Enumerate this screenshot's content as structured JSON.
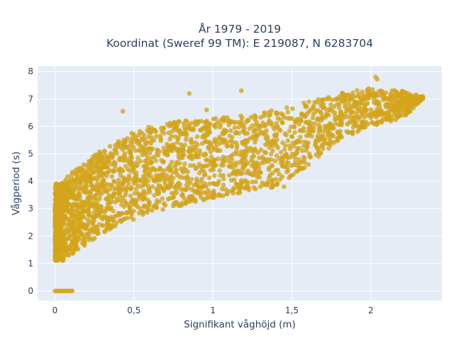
{
  "chart_data": {
    "type": "scatter",
    "title_lines": [
      "År 1979 - 2019",
      "Koordinat (Sweref 99 TM): E 219087, N 6283704"
    ],
    "xlabel": "Signifikant våghöjd (m)",
    "ylabel": "Vågperiod (s)",
    "xlim": [
      -0.11,
      2.45
    ],
    "ylim": [
      -0.35,
      8.2
    ],
    "x_ticks": [
      0,
      0.5,
      1,
      1.5,
      2
    ],
    "x_tick_labels": [
      "0",
      "0,5",
      "1",
      "1,5",
      "2"
    ],
    "y_ticks": [
      0,
      1,
      2,
      3,
      4,
      5,
      6,
      7,
      8
    ],
    "y_tick_labels": [
      "0",
      "1",
      "2",
      "3",
      "4",
      "5",
      "6",
      "7",
      "8"
    ],
    "grid": true,
    "marker_color": "#d4a419",
    "plot_bg": "#e5ecf6",
    "zero_period_points": {
      "x": [
        0.0,
        0.01,
        0.02,
        0.03,
        0.04,
        0.05,
        0.06,
        0.07,
        0.08,
        0.09,
        0.1,
        0.11
      ],
      "y": 0
    },
    "envelope": [
      {
        "x": 0.0,
        "low": 1.1,
        "high": 3.9
      },
      {
        "x": 0.05,
        "low": 1.1,
        "high": 4.0
      },
      {
        "x": 0.1,
        "low": 1.3,
        "high": 4.3
      },
      {
        "x": 0.2,
        "low": 1.7,
        "high": 4.7
      },
      {
        "x": 0.3,
        "low": 2.1,
        "high": 5.2
      },
      {
        "x": 0.4,
        "low": 2.4,
        "high": 5.5
      },
      {
        "x": 0.5,
        "low": 2.6,
        "high": 5.8
      },
      {
        "x": 0.6,
        "low": 2.8,
        "high": 6.0
      },
      {
        "x": 0.7,
        "low": 3.0,
        "high": 6.1
      },
      {
        "x": 0.8,
        "low": 3.1,
        "high": 6.2
      },
      {
        "x": 1.0,
        "low": 3.4,
        "high": 6.3
      },
      {
        "x": 1.2,
        "low": 3.6,
        "high": 6.4
      },
      {
        "x": 1.4,
        "low": 3.8,
        "high": 6.6
      },
      {
        "x": 1.6,
        "low": 4.5,
        "high": 6.9
      },
      {
        "x": 1.8,
        "low": 5.5,
        "high": 7.2
      },
      {
        "x": 2.0,
        "low": 6.0,
        "high": 7.4
      },
      {
        "x": 2.2,
        "low": 6.3,
        "high": 7.3
      },
      {
        "x": 2.33,
        "low": 7.0,
        "high": 7.1
      }
    ],
    "outliers": [
      {
        "x": 1.08,
        "y": 3.7
      },
      {
        "x": 1.2,
        "y": 3.75
      },
      {
        "x": 1.3,
        "y": 3.8
      },
      {
        "x": 1.38,
        "y": 3.85
      },
      {
        "x": 1.45,
        "y": 3.8
      },
      {
        "x": 1.52,
        "y": 4.85
      },
      {
        "x": 1.58,
        "y": 4.85
      },
      {
        "x": 1.65,
        "y": 5.4
      },
      {
        "x": 2.03,
        "y": 7.8
      },
      {
        "x": 2.04,
        "y": 7.72
      },
      {
        "x": 2.33,
        "y": 7.05
      },
      {
        "x": 2.25,
        "y": 6.55
      },
      {
        "x": 0.43,
        "y": 6.55
      },
      {
        "x": 0.85,
        "y": 7.2
      },
      {
        "x": 0.96,
        "y": 6.6
      },
      {
        "x": 1.18,
        "y": 7.3
      },
      {
        "x": 2.2,
        "y": 7.28
      },
      {
        "x": 2.1,
        "y": 6.25
      }
    ]
  }
}
